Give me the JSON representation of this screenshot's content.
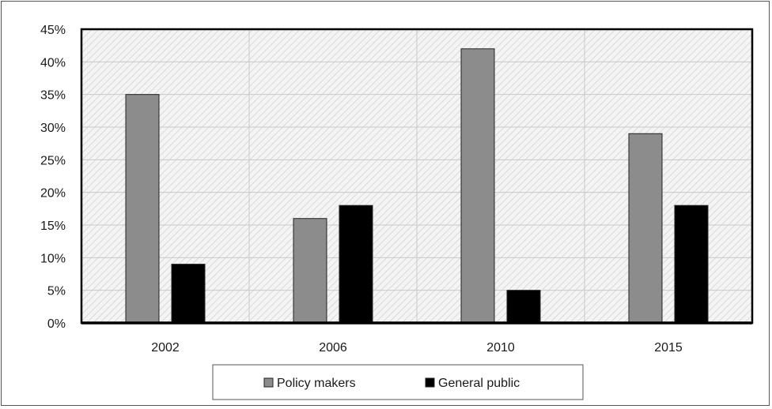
{
  "chart_data": {
    "type": "bar",
    "title": "",
    "xlabel": "",
    "ylabel": "",
    "categories": [
      "2002",
      "2006",
      "2010",
      "2015"
    ],
    "series": [
      {
        "name": "Policy makers",
        "values": [
          35,
          16,
          42,
          29
        ],
        "color": "#8c8c8c"
      },
      {
        "name": "General public",
        "values": [
          9,
          18,
          5,
          18
        ],
        "color": "#000000"
      }
    ],
    "ylim": [
      0,
      45
    ],
    "yticks": [
      0,
      5,
      10,
      15,
      20,
      25,
      30,
      35,
      40,
      45
    ],
    "ytick_format": "percent",
    "grid": true,
    "legend_position": "bottom",
    "plot_background": "diagonal hatch light gray"
  }
}
